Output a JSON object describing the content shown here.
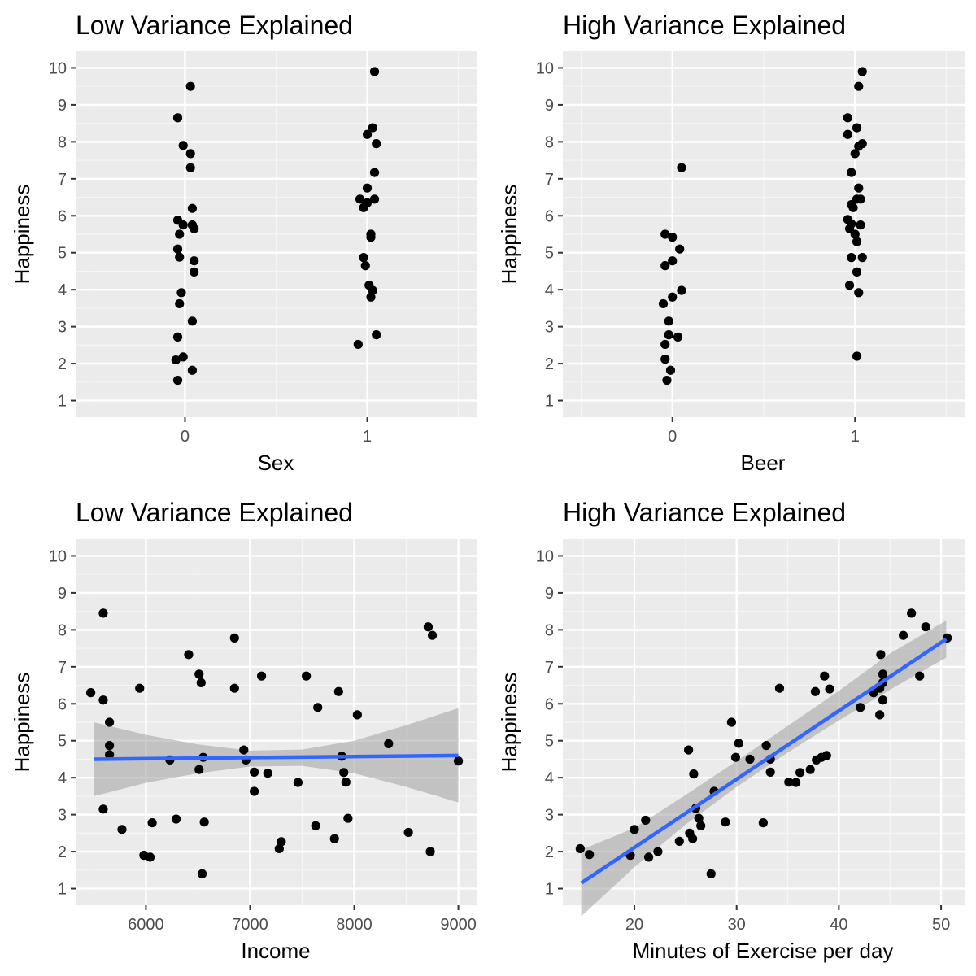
{
  "colors": {
    "panel_background": "#EBEBEB",
    "grid_major": "#FFFFFF",
    "grid_minor": "#F5F5F5",
    "points": "#000000",
    "regression_line": "#3366FF",
    "confidence_band": "#999999"
  },
  "chart_data": [
    {
      "type": "scatter",
      "title": "Low Variance Explained",
      "xlabel": "Sex",
      "ylabel": "Happiness",
      "xlim": [
        -0.6,
        1.6
      ],
      "ylim": [
        0.55,
        10.45
      ],
      "xticks": [
        0,
        1
      ],
      "yticks": [
        1,
        2,
        3,
        4,
        5,
        6,
        7,
        8,
        9,
        10
      ],
      "grid": true,
      "points": [
        {
          "x": 0.03,
          "y": 9.5
        },
        {
          "x": -0.04,
          "y": 8.65
        },
        {
          "x": -0.01,
          "y": 7.9
        },
        {
          "x": 0.03,
          "y": 7.68
        },
        {
          "x": 0.03,
          "y": 7.3
        },
        {
          "x": 0.04,
          "y": 6.2
        },
        {
          "x": -0.04,
          "y": 5.88
        },
        {
          "x": -0.01,
          "y": 5.75
        },
        {
          "x": 0.04,
          "y": 5.75
        },
        {
          "x": 0.05,
          "y": 5.65
        },
        {
          "x": -0.03,
          "y": 5.5
        },
        {
          "x": -0.04,
          "y": 5.1
        },
        {
          "x": -0.03,
          "y": 4.88
        },
        {
          "x": 0.05,
          "y": 4.78
        },
        {
          "x": 0.05,
          "y": 4.48
        },
        {
          "x": -0.02,
          "y": 3.92
        },
        {
          "x": -0.03,
          "y": 3.62
        },
        {
          "x": 0.04,
          "y": 3.15
        },
        {
          "x": -0.04,
          "y": 2.72
        },
        {
          "x": -0.05,
          "y": 2.1
        },
        {
          "x": -0.01,
          "y": 2.18
        },
        {
          "x": 0.04,
          "y": 1.82
        },
        {
          "x": -0.04,
          "y": 1.55
        },
        {
          "x": 1.04,
          "y": 9.9
        },
        {
          "x": 1.03,
          "y": 8.38
        },
        {
          "x": 1.0,
          "y": 8.2
        },
        {
          "x": 1.05,
          "y": 7.95
        },
        {
          "x": 1.04,
          "y": 7.17
        },
        {
          "x": 1.0,
          "y": 6.75
        },
        {
          "x": 0.96,
          "y": 6.45
        },
        {
          "x": 1.04,
          "y": 6.45
        },
        {
          "x": 1.0,
          "y": 6.35
        },
        {
          "x": 0.98,
          "y": 6.22
        },
        {
          "x": 1.02,
          "y": 5.5
        },
        {
          "x": 1.02,
          "y": 5.42
        },
        {
          "x": 0.98,
          "y": 4.87
        },
        {
          "x": 0.99,
          "y": 4.65
        },
        {
          "x": 1.01,
          "y": 4.12
        },
        {
          "x": 1.03,
          "y": 3.98
        },
        {
          "x": 1.02,
          "y": 3.8
        },
        {
          "x": 1.05,
          "y": 2.78
        },
        {
          "x": 0.95,
          "y": 2.52
        }
      ]
    },
    {
      "type": "scatter",
      "title": "High Variance Explained",
      "xlabel": "Beer",
      "ylabel": "Happiness",
      "xlim": [
        -0.6,
        1.6
      ],
      "ylim": [
        0.55,
        10.45
      ],
      "xticks": [
        0,
        1
      ],
      "yticks": [
        1,
        2,
        3,
        4,
        5,
        6,
        7,
        8,
        9,
        10
      ],
      "grid": true,
      "points": [
        {
          "x": 0.05,
          "y": 7.3
        },
        {
          "x": -0.04,
          "y": 5.5
        },
        {
          "x": 0.0,
          "y": 5.42
        },
        {
          "x": 0.04,
          "y": 5.1
        },
        {
          "x": 0.0,
          "y": 4.78
        },
        {
          "x": -0.04,
          "y": 4.65
        },
        {
          "x": 0.05,
          "y": 3.98
        },
        {
          "x": 0.0,
          "y": 3.8
        },
        {
          "x": -0.05,
          "y": 3.62
        },
        {
          "x": -0.02,
          "y": 3.15
        },
        {
          "x": -0.02,
          "y": 2.78
        },
        {
          "x": 0.03,
          "y": 2.72
        },
        {
          "x": -0.04,
          "y": 2.52
        },
        {
          "x": -0.04,
          "y": 2.12
        },
        {
          "x": -0.01,
          "y": 1.82
        },
        {
          "x": -0.03,
          "y": 1.55
        },
        {
          "x": 1.04,
          "y": 9.9
        },
        {
          "x": 1.02,
          "y": 9.5
        },
        {
          "x": 0.96,
          "y": 8.65
        },
        {
          "x": 1.01,
          "y": 8.38
        },
        {
          "x": 0.96,
          "y": 8.2
        },
        {
          "x": 1.04,
          "y": 7.95
        },
        {
          "x": 1.02,
          "y": 7.88
        },
        {
          "x": 1.0,
          "y": 7.68
        },
        {
          "x": 0.98,
          "y": 7.17
        },
        {
          "x": 1.02,
          "y": 6.75
        },
        {
          "x": 1.03,
          "y": 6.45
        },
        {
          "x": 1.01,
          "y": 6.45
        },
        {
          "x": 0.98,
          "y": 6.3
        },
        {
          "x": 0.99,
          "y": 6.22
        },
        {
          "x": 0.96,
          "y": 5.9
        },
        {
          "x": 0.98,
          "y": 5.78
        },
        {
          "x": 1.03,
          "y": 5.75
        },
        {
          "x": 0.97,
          "y": 5.65
        },
        {
          "x": 1.0,
          "y": 5.5
        },
        {
          "x": 1.01,
          "y": 5.3
        },
        {
          "x": 0.98,
          "y": 4.87
        },
        {
          "x": 1.04,
          "y": 4.87
        },
        {
          "x": 1.01,
          "y": 4.48
        },
        {
          "x": 0.97,
          "y": 4.12
        },
        {
          "x": 1.02,
          "y": 3.92
        },
        {
          "x": 1.01,
          "y": 2.2
        }
      ]
    },
    {
      "type": "scatter",
      "title": "Low Variance Explained",
      "xlabel": "Income",
      "ylabel": "Happiness",
      "xlim": [
        5325,
        9175
      ],
      "ylim": [
        0.55,
        10.45
      ],
      "xticks": [
        6000,
        7000,
        8000,
        9000
      ],
      "yticks": [
        1,
        2,
        3,
        4,
        5,
        6,
        7,
        8,
        9,
        10
      ],
      "grid": true,
      "regression": {
        "x_start": 5500,
        "y_start": 4.5,
        "x_end": 9000,
        "y_end": 4.6
      },
      "confidence_band": {
        "x": [
          5500,
          6000,
          6500,
          7000,
          7500,
          8000,
          8500,
          9000
        ],
        "lower": [
          3.5,
          3.86,
          4.12,
          4.3,
          4.32,
          4.12,
          3.75,
          3.33
        ],
        "upper": [
          5.5,
          5.16,
          4.9,
          4.73,
          4.76,
          5.0,
          5.42,
          5.88
        ]
      },
      "points": [
        {
          "x": 5470,
          "y": 6.3
        },
        {
          "x": 5590,
          "y": 8.45
        },
        {
          "x": 5590,
          "y": 6.1
        },
        {
          "x": 5650,
          "y": 5.5
        },
        {
          "x": 5650,
          "y": 4.87
        },
        {
          "x": 5650,
          "y": 4.62
        },
        {
          "x": 5590,
          "y": 3.15
        },
        {
          "x": 5770,
          "y": 2.6
        },
        {
          "x": 5940,
          "y": 6.42
        },
        {
          "x": 5980,
          "y": 1.9
        },
        {
          "x": 6040,
          "y": 1.85
        },
        {
          "x": 6060,
          "y": 2.78
        },
        {
          "x": 6230,
          "y": 4.48
        },
        {
          "x": 6290,
          "y": 2.88
        },
        {
          "x": 6410,
          "y": 7.33
        },
        {
          "x": 6510,
          "y": 6.8
        },
        {
          "x": 6530,
          "y": 6.57
        },
        {
          "x": 6510,
          "y": 4.22
        },
        {
          "x": 6550,
          "y": 4.55
        },
        {
          "x": 6540,
          "y": 1.4
        },
        {
          "x": 6560,
          "y": 2.8
        },
        {
          "x": 6850,
          "y": 7.78
        },
        {
          "x": 6850,
          "y": 6.42
        },
        {
          "x": 6940,
          "y": 4.75
        },
        {
          "x": 6960,
          "y": 4.48
        },
        {
          "x": 7040,
          "y": 4.15
        },
        {
          "x": 7040,
          "y": 3.63
        },
        {
          "x": 7110,
          "y": 6.75
        },
        {
          "x": 7170,
          "y": 4.12
        },
        {
          "x": 7280,
          "y": 2.08
        },
        {
          "x": 7300,
          "y": 2.27
        },
        {
          "x": 7460,
          "y": 3.87
        },
        {
          "x": 7540,
          "y": 6.75
        },
        {
          "x": 7630,
          "y": 2.7
        },
        {
          "x": 7650,
          "y": 5.9
        },
        {
          "x": 7810,
          "y": 2.35
        },
        {
          "x": 7850,
          "y": 6.33
        },
        {
          "x": 7880,
          "y": 4.58
        },
        {
          "x": 7900,
          "y": 4.14
        },
        {
          "x": 7920,
          "y": 3.88
        },
        {
          "x": 7940,
          "y": 2.9
        },
        {
          "x": 8030,
          "y": 5.7
        },
        {
          "x": 8330,
          "y": 4.92
        },
        {
          "x": 8520,
          "y": 2.52
        },
        {
          "x": 8710,
          "y": 8.08
        },
        {
          "x": 8750,
          "y": 7.85
        },
        {
          "x": 8730,
          "y": 2.0
        },
        {
          "x": 9000,
          "y": 4.45
        }
      ]
    },
    {
      "type": "scatter",
      "title": "High Variance Explained",
      "xlabel": "Minutes of Exercise per day",
      "ylabel": "Happiness",
      "xlim": [
        13.0,
        52.3
      ],
      "ylim": [
        0.55,
        10.45
      ],
      "xticks": [
        20,
        30,
        40,
        50
      ],
      "yticks": [
        1,
        2,
        3,
        4,
        5,
        6,
        7,
        8,
        9,
        10
      ],
      "grid": true,
      "regression": {
        "x_start": 14.8,
        "y_start": 1.15,
        "x_end": 50.5,
        "y_end": 7.75
      },
      "confidence_band": {
        "x": [
          14.8,
          20,
          25,
          30,
          35,
          40,
          45,
          50.5
        ],
        "lower": [
          0.25,
          1.58,
          2.73,
          3.75,
          4.68,
          5.55,
          6.38,
          7.25
        ],
        "upper": [
          2.05,
          2.64,
          3.53,
          4.45,
          5.4,
          6.35,
          7.36,
          8.25
        ]
      },
      "points": [
        {
          "x": 14.7,
          "y": 2.08
        },
        {
          "x": 15.6,
          "y": 1.92
        },
        {
          "x": 19.6,
          "y": 1.9
        },
        {
          "x": 20.0,
          "y": 2.6
        },
        {
          "x": 21.1,
          "y": 2.85
        },
        {
          "x": 21.4,
          "y": 1.85
        },
        {
          "x": 22.3,
          "y": 2.0
        },
        {
          "x": 24.4,
          "y": 2.28
        },
        {
          "x": 25.3,
          "y": 4.75
        },
        {
          "x": 25.4,
          "y": 2.5
        },
        {
          "x": 25.7,
          "y": 2.35
        },
        {
          "x": 25.8,
          "y": 4.1
        },
        {
          "x": 26.0,
          "y": 3.17
        },
        {
          "x": 26.3,
          "y": 2.9
        },
        {
          "x": 26.5,
          "y": 2.7
        },
        {
          "x": 27.5,
          "y": 1.4
        },
        {
          "x": 27.8,
          "y": 3.63
        },
        {
          "x": 28.9,
          "y": 2.8
        },
        {
          "x": 29.5,
          "y": 5.5
        },
        {
          "x": 29.9,
          "y": 4.55
        },
        {
          "x": 30.2,
          "y": 4.93
        },
        {
          "x": 31.3,
          "y": 4.5
        },
        {
          "x": 32.6,
          "y": 2.78
        },
        {
          "x": 32.9,
          "y": 4.87
        },
        {
          "x": 33.3,
          "y": 4.5
        },
        {
          "x": 33.3,
          "y": 4.15
        },
        {
          "x": 34.2,
          "y": 6.42
        },
        {
          "x": 35.1,
          "y": 3.88
        },
        {
          "x": 35.8,
          "y": 3.87
        },
        {
          "x": 36.2,
          "y": 4.14
        },
        {
          "x": 37.2,
          "y": 4.22
        },
        {
          "x": 37.7,
          "y": 6.33
        },
        {
          "x": 37.8,
          "y": 4.48
        },
        {
          "x": 38.3,
          "y": 4.55
        },
        {
          "x": 38.6,
          "y": 6.75
        },
        {
          "x": 38.8,
          "y": 4.6
        },
        {
          "x": 39.1,
          "y": 6.4
        },
        {
          "x": 42.1,
          "y": 5.9
        },
        {
          "x": 43.4,
          "y": 6.3
        },
        {
          "x": 44.0,
          "y": 6.42
        },
        {
          "x": 44.0,
          "y": 5.7
        },
        {
          "x": 44.1,
          "y": 7.33
        },
        {
          "x": 44.3,
          "y": 6.57
        },
        {
          "x": 44.3,
          "y": 6.8
        },
        {
          "x": 44.3,
          "y": 6.1
        },
        {
          "x": 46.3,
          "y": 7.85
        },
        {
          "x": 47.1,
          "y": 8.45
        },
        {
          "x": 47.9,
          "y": 6.75
        },
        {
          "x": 48.5,
          "y": 8.08
        },
        {
          "x": 50.6,
          "y": 7.78
        }
      ]
    }
  ]
}
